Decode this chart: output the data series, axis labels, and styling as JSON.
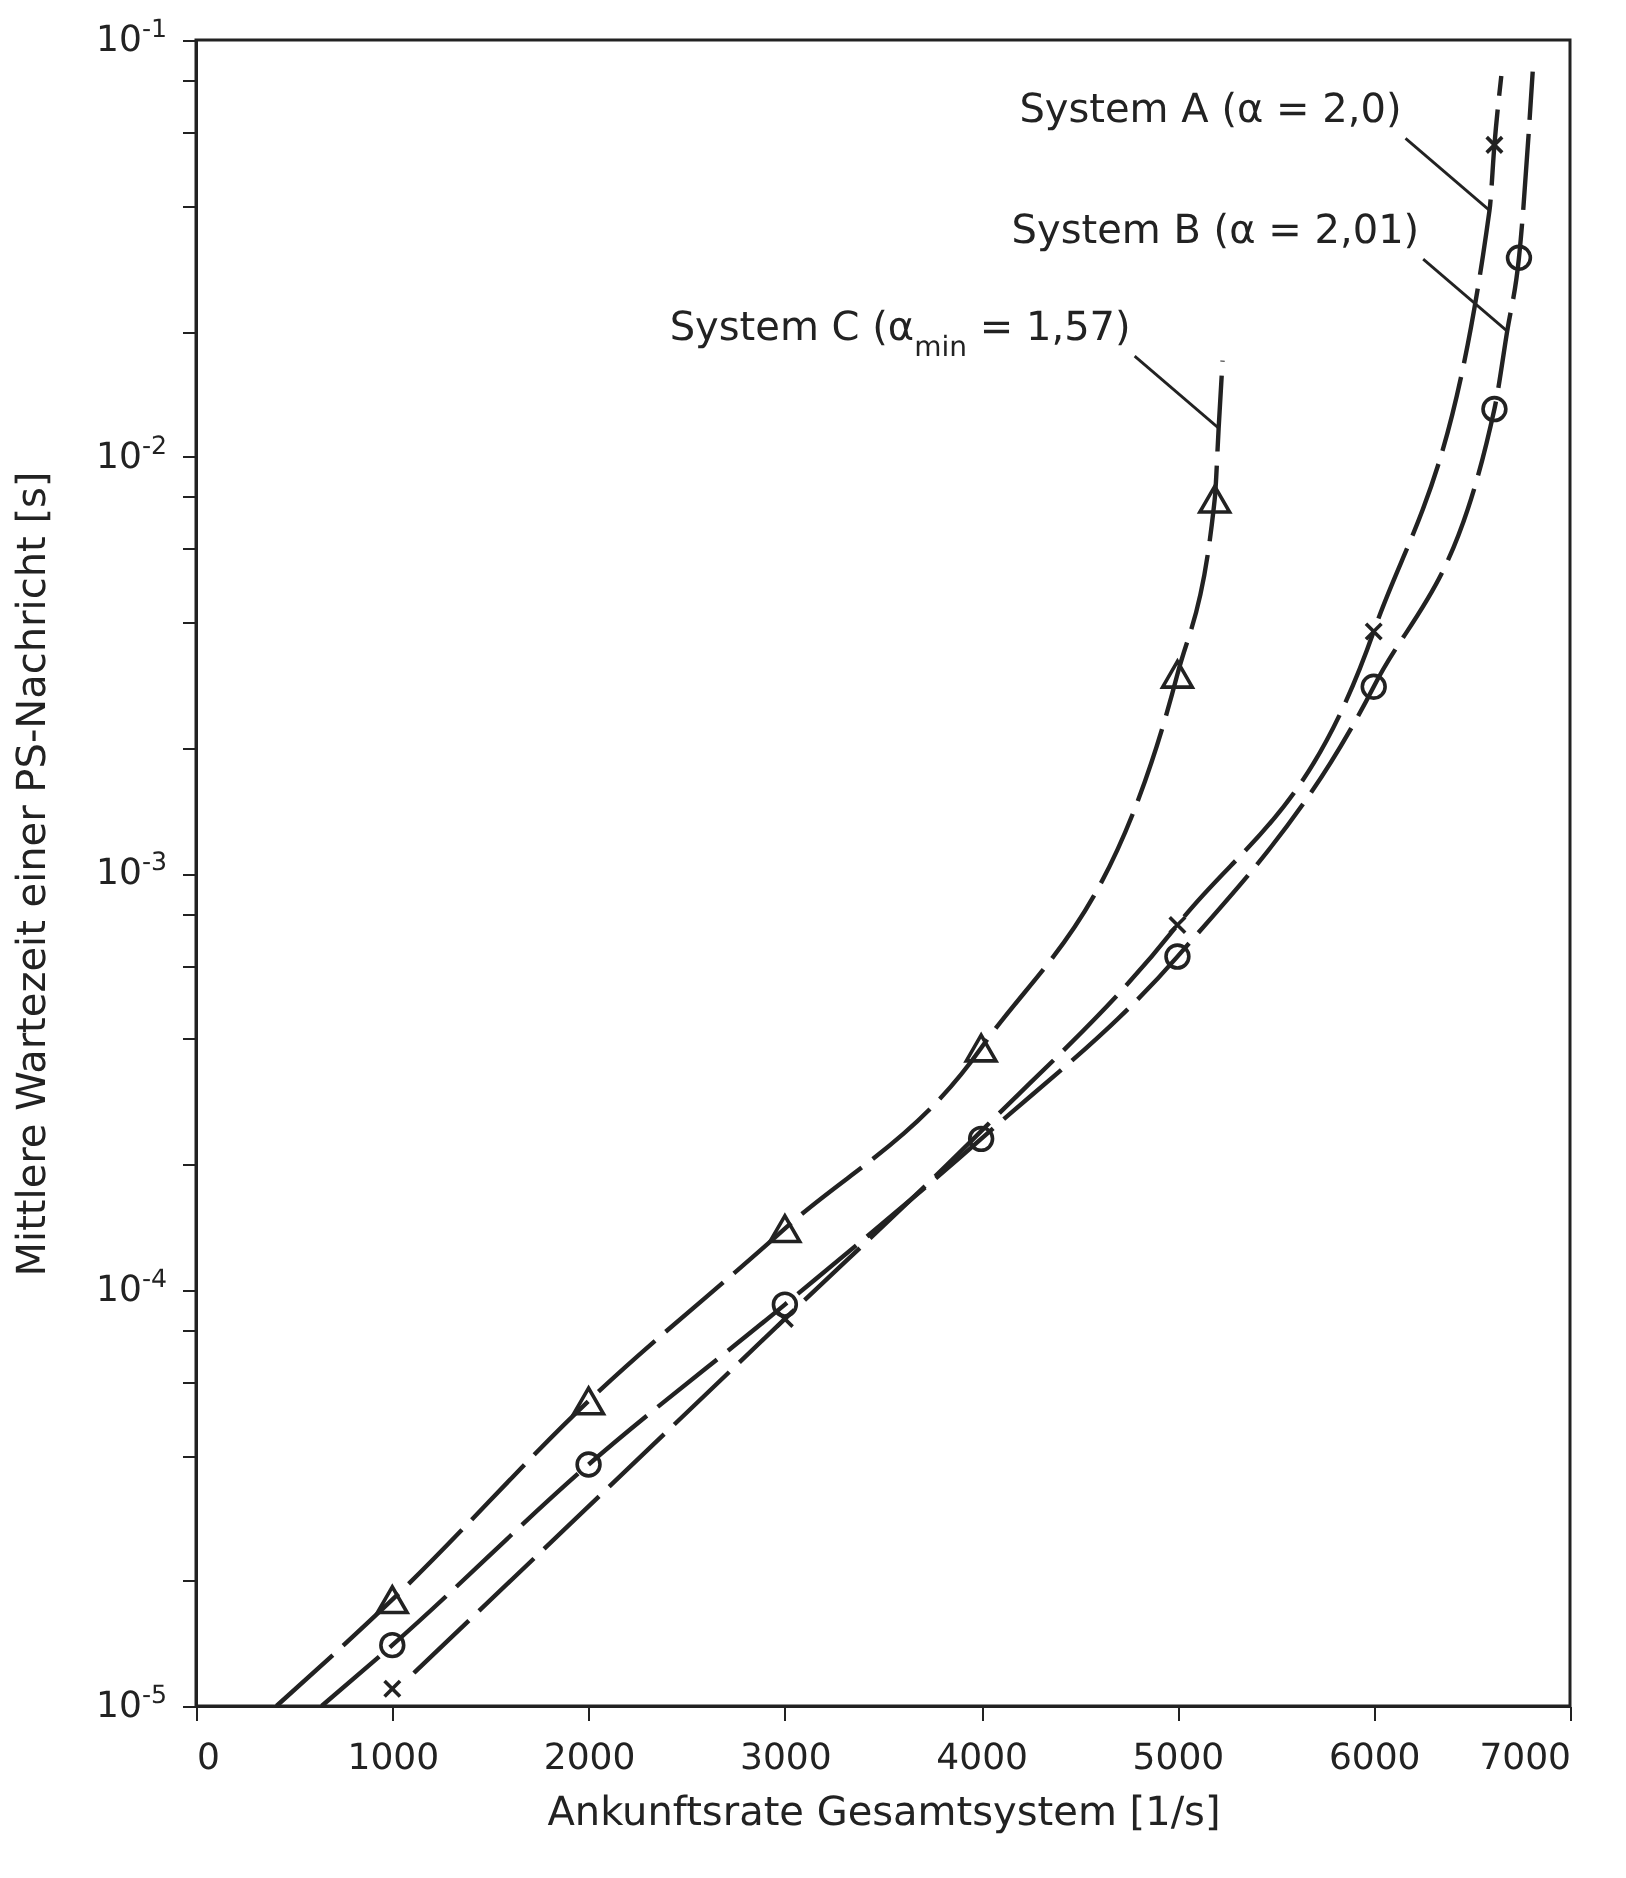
{
  "chart_data": {
    "type": "line",
    "xlabel": "Ankunftsrate Gesamtsystem [1/s]",
    "ylabel": "Mittlere Wartezeit einer PS-Nachricht [s]",
    "xlim": [
      0,
      7000
    ],
    "xticks": [
      0,
      1000,
      2000,
      3000,
      4000,
      5000,
      6000,
      7000
    ],
    "ylim": [
      1e-05,
      0.1
    ],
    "log": true,
    "yticks": [
      {
        "value": 1e-05,
        "label": "10$^{-5}$"
      },
      {
        "value": 2e-05,
        "label": null
      },
      {
        "value": 4e-05,
        "label": null
      },
      {
        "value": 6e-05,
        "label": null
      },
      {
        "value": 8e-05,
        "label": null
      },
      {
        "value": 0.0001,
        "label": "10$^{-4}$"
      },
      {
        "value": 0.0002,
        "label": null
      },
      {
        "value": 0.0004,
        "label": null
      },
      {
        "value": 0.0006,
        "label": null
      },
      {
        "value": 0.0008,
        "label": null
      },
      {
        "value": 0.001,
        "label": "10$^{-3}$"
      },
      {
        "value": 0.002,
        "label": null
      },
      {
        "value": 0.004,
        "label": null
      },
      {
        "value": 0.006,
        "label": null
      },
      {
        "value": 0.008,
        "label": null
      },
      {
        "value": 0.01,
        "label": "10$^{-2}$"
      },
      {
        "value": 0.02,
        "label": null
      },
      {
        "value": 0.04,
        "label": null
      },
      {
        "value": 0.06,
        "label": null
      },
      {
        "value": 0.08,
        "label": null
      },
      {
        "value": 0.1,
        "label": "10$^{-1}$"
      }
    ],
    "grid": false,
    "series": [
      {
        "color": "#222222",
        "marker": "none",
        "line_style": "dashed",
        "x": [
          1110,
          3000,
          4000,
          5000,
          6000,
          6590,
          6615,
          6650
        ],
        "values": [
          1.2e-05,
          8.5e-05,
          0.00024,
          0.00075,
          0.0038,
          0.039,
          0.056,
          0.082
        ]
      },
      {
        "color": "#222222",
        "marker": "none",
        "line_style": "dashed",
        "x": [
          640,
          1000,
          2000,
          3000,
          4000,
          5000,
          6000,
          6615,
          6680,
          6740,
          6810
        ],
        "values": [
          1e-05,
          1.4e-05,
          3.8e-05,
          9.2e-05,
          0.00023,
          0.00063,
          0.0028,
          0.013,
          0.02,
          0.03,
          0.084
        ]
      },
      {
        "color": "#222222",
        "marker": "none",
        "line_style": "dashed",
        "x": [
          410,
          1000,
          2000,
          3000,
          4000,
          5000,
          5190,
          5210,
          5230
        ],
        "values": [
          1e-05,
          1.8e-05,
          5.4e-05,
          0.00014,
          0.00038,
          0.003,
          0.0079,
          0.0117,
          0.017
        ]
      },
      {
        "type": "scatter",
        "color": "#222222",
        "marker": "cross",
        "x": [
          1000,
          3000,
          5000,
          6000,
          6615
        ],
        "values": [
          1.1e-05,
          8.5e-05,
          0.00075,
          0.0038,
          0.056
        ]
      },
      {
        "type": "scatter",
        "color": "#222222",
        "marker": "circle",
        "x": [
          1000,
          2000,
          3000,
          4000,
          5000,
          6000,
          6615,
          6740
        ],
        "values": [
          1.4e-05,
          3.8e-05,
          9.2e-05,
          0.00023,
          0.00063,
          0.0028,
          0.013,
          0.03
        ]
      },
      {
        "type": "scatter",
        "color": "#222222",
        "marker": "triangle",
        "x": [
          1000,
          2000,
          3000,
          4000,
          5000,
          5190
        ],
        "values": [
          1.8e-05,
          5.4e-05,
          0.00014,
          0.00038,
          0.003,
          0.0079
        ]
      }
    ],
    "annotations": [
      {
        "text": "System A  (α = 2,0)",
        "x": 6590,
        "y": 0.039
      },
      {
        "text": "System B  (α = 2,01)",
        "x": 6680,
        "y": 0.02
      },
      {
        "text": "System C (α$_{min}$ = 1,57)",
        "x": 5210,
        "y": 0.0117
      }
    ]
  }
}
